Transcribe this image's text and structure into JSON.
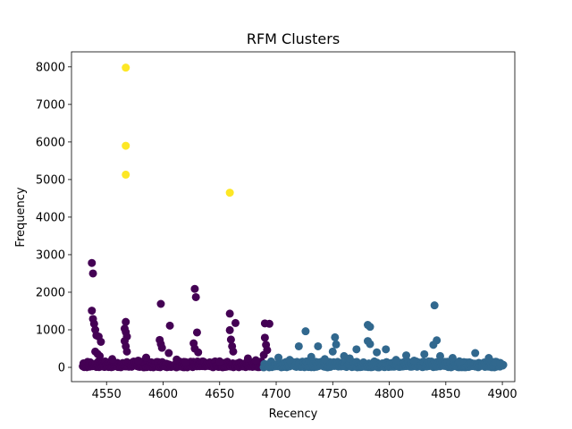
{
  "chart_data": {
    "type": "scatter",
    "title": "RFM Clusters",
    "xlabel": "Recency",
    "ylabel": "Frequency",
    "xlim": [
      4519,
      4911
    ],
    "ylim": [
      -380,
      8400
    ],
    "xticks": [
      4550,
      4600,
      4650,
      4700,
      4750,
      4800,
      4850,
      4900
    ],
    "yticks": [
      0,
      1000,
      2000,
      3000,
      4000,
      5000,
      6000,
      7000,
      8000
    ],
    "grid": false,
    "legend": "none",
    "colors": {
      "cluster_0": "#440154",
      "cluster_1": "#31688e",
      "cluster_2": "#fde725"
    },
    "series": [
      {
        "cluster": 0,
        "color": "#440154",
        "points": [
          [
            4537,
            2780
          ],
          [
            4538,
            2500
          ],
          [
            4537,
            1510
          ],
          [
            4538,
            1290
          ],
          [
            4539,
            1160
          ],
          [
            4540,
            1000
          ],
          [
            4541,
            850
          ],
          [
            4543,
            820
          ],
          [
            4545,
            680
          ],
          [
            4540,
            420
          ],
          [
            4542,
            360
          ],
          [
            4544,
            300
          ],
          [
            4567,
            1210
          ],
          [
            4566,
            1030
          ],
          [
            4567,
            940
          ],
          [
            4568,
            820
          ],
          [
            4566,
            700
          ],
          [
            4567,
            560
          ],
          [
            4568,
            420
          ],
          [
            4598,
            1690
          ],
          [
            4606,
            1110
          ],
          [
            4597,
            730
          ],
          [
            4598,
            620
          ],
          [
            4599,
            520
          ],
          [
            4605,
            380
          ],
          [
            4628,
            2090
          ],
          [
            4629,
            1870
          ],
          [
            4630,
            930
          ],
          [
            4627,
            640
          ],
          [
            4628,
            500
          ],
          [
            4631,
            400
          ],
          [
            4659,
            1430
          ],
          [
            4664,
            1180
          ],
          [
            4659,
            990
          ],
          [
            4660,
            740
          ],
          [
            4661,
            560
          ],
          [
            4662,
            420
          ],
          [
            4690,
            1170
          ],
          [
            4694,
            1160
          ],
          [
            4690,
            790
          ],
          [
            4691,
            600
          ],
          [
            4692,
            460
          ],
          [
            4689,
            330
          ],
          [
            4612,
            210
          ],
          [
            4620,
            140
          ],
          [
            4585,
            260
          ],
          [
            4578,
            180
          ],
          [
            4555,
            220
          ],
          [
            4650,
            160
          ],
          [
            4675,
            240
          ],
          [
            4682,
            190
          ]
        ]
      },
      {
        "cluster": 1,
        "color": "#31688e",
        "points": [
          [
            4840,
            1650
          ],
          [
            4781,
            1130
          ],
          [
            4783,
            1080
          ],
          [
            4726,
            960
          ],
          [
            4752,
            800
          ],
          [
            4781,
            700
          ],
          [
            4783,
            620
          ],
          [
            4842,
            720
          ],
          [
            4839,
            600
          ],
          [
            4720,
            560
          ],
          [
            4737,
            560
          ],
          [
            4753,
            610
          ],
          [
            4771,
            480
          ],
          [
            4797,
            480
          ],
          [
            4750,
            420
          ],
          [
            4789,
            400
          ],
          [
            4831,
            350
          ],
          [
            4876,
            380
          ],
          [
            4815,
            320
          ],
          [
            4888,
            250
          ],
          [
            4856,
            250
          ],
          [
            4731,
            280
          ],
          [
            4743,
            220
          ],
          [
            4765,
            240
          ],
          [
            4806,
            200
          ],
          [
            4822,
            180
          ],
          [
            4862,
            160
          ],
          [
            4894,
            150
          ],
          [
            4898,
            120
          ],
          [
            4712,
            200
          ],
          [
            4702,
            260
          ],
          [
            4760,
            300
          ],
          [
            4845,
            300
          ]
        ]
      },
      {
        "cluster": 2,
        "color": "#fde725",
        "points": [
          [
            4567,
            7980
          ],
          [
            4567,
            5900
          ],
          [
            4567,
            5130
          ],
          [
            4659,
            4650
          ]
        ]
      }
    ],
    "base_bands": [
      {
        "cluster": 0,
        "x_from": 4529,
        "x_to": 4688,
        "color": "#440154"
      },
      {
        "cluster": 1,
        "x_from": 4689,
        "x_to": 4901,
        "color": "#31688e"
      }
    ]
  }
}
